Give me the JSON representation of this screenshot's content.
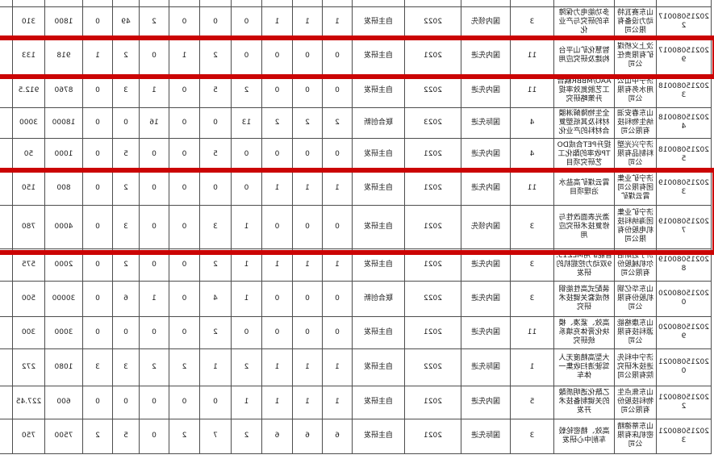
{
  "table": {
    "rows": [
      {
        "id": "202150800172",
        "company": "山东赛瓦特动力设备有限公司",
        "project": "多功能电力保障车的研究与产业化",
        "count": "3",
        "level": "国内领先",
        "year": "2022",
        "mode": "自主研发",
        "values": [
          "1",
          "1",
          "1",
          "0",
          "0",
          "0",
          "2",
          "49",
          "0",
          "1800",
          "310"
        ]
      },
      {
        "id": "202150800179",
        "company": "汶上义桥煤矿有限责任公司",
        "project": "智慧化矿山平台构建及研究应用",
        "count": "11",
        "level": "国内先进",
        "year": "2021",
        "mode": "自主研发",
        "values": [
          "0",
          "0",
          "0",
          "0",
          "2",
          "1",
          "0",
          "2",
          "1",
          "918",
          "133"
        ]
      },
      {
        "id": "202150800183",
        "company": "济宁中山公用水务有限公司",
        "project": "AAO/MBBR耦合工艺脱氮效率提升策略研究",
        "count": "11",
        "level": "国内先进",
        "year": "2022",
        "mode": "自主研发",
        "values": [
          "0",
          "0",
          "0",
          "2",
          "5",
          "0",
          "1",
          "3",
          "0",
          "8760",
          "912.5"
        ]
      },
      {
        "id": "202150800184",
        "company": "山东春安沺纳生物科技有限公司",
        "project": "全生物降解淋膜材料及其纸塑复合材料的产业化",
        "count": "4",
        "level": "国际先进",
        "year": "2023",
        "mode": "联合创新",
        "values": [
          "2",
          "2",
          "2",
          "13",
          "0",
          "0",
          "16",
          "0",
          "0",
          "18000",
          "3000"
        ]
      },
      {
        "id": "202150800185",
        "company": "济宁兴光塑料制品有限公司",
        "project": "提升PET合成DOTP收率的酯化工艺研究项目",
        "count": "4",
        "level": "国内先进",
        "year": "2021",
        "mode": "自主研发",
        "values": [
          "0",
          "0",
          "0",
          "0",
          "5",
          "0",
          "0",
          "5",
          "0",
          "1000",
          "50"
        ]
      },
      {
        "id": "202150800193",
        "company": "济宁矿业集团有限公司霄云煤矿",
        "project": "霄云煤矿高盐水治理项目",
        "count": "11",
        "level": "国内先进",
        "year": "2021",
        "mode": "自主研发",
        "values": [
          "1",
          "1",
          "1",
          "0",
          "0",
          "0",
          "0",
          "2",
          "0",
          "800",
          "150"
        ]
      },
      {
        "id": "202150800197",
        "company": "济宁矿业集团海纳科技机电股份有限公司",
        "project": "激光表面改性与修复技术研究应用",
        "count": "3",
        "level": "国内领先",
        "year": "2021",
        "mode": "自主研发",
        "values": [
          "0",
          "0",
          "0",
          "1",
          "3",
          "0",
          "0",
          "3",
          "0",
          "4000",
          "780"
        ]
      },
      {
        "id": "202150800198",
        "company": "济宁迈斯伯尔机械股份有限公司",
        "project": "智能矿用MEZ15.9双动力挖掘机的研发",
        "count": "3",
        "level": "国内先进",
        "year": "2021",
        "mode": "自主研发",
        "values": [
          "1",
          "1",
          "1",
          "1",
          "2",
          "0",
          "0",
          "2",
          "0",
          "2000",
          "575"
        ]
      },
      {
        "id": "202150800200",
        "company": "山东华亿钢机股份有限公司",
        "project": "装配式高性能钢桥成套关键技术研究",
        "count": "3",
        "level": "国内先进",
        "year": "2022",
        "mode": "联合创新",
        "values": [
          "0",
          "0",
          "0",
          "1",
          "4",
          "0",
          "1",
          "6",
          "0",
          "30000",
          "500"
        ]
      },
      {
        "id": "202150800209",
        "company": "山东康格能源科技有限公司",
        "project": "高效、紧凑、模块化膏体充填系统研究",
        "count": "11",
        "level": "国内先进",
        "year": "2021",
        "mode": "自主研发",
        "values": [
          "0",
          "0",
          "0",
          "0",
          "2",
          "0",
          "0",
          "0",
          "0",
          "3000",
          "300"
        ]
      },
      {
        "id": "202150800210",
        "company": "济宁中科先进技术研究院有限公司",
        "project": "大型高精度无人驾驶清扫收集一体车",
        "count": "1",
        "level": "国际先进",
        "year": "2022",
        "mode": "自主研发",
        "values": [
          "1",
          "1",
          "1",
          "2",
          "1",
          "2",
          "2",
          "3",
          "3",
          "1080",
          "272"
        ]
      },
      {
        "id": "202150800212",
        "company": "山东焦点生物科技股份有限公司",
        "project": "乙酰化透明质酸的关键制备技术开发",
        "count": "5",
        "level": "国内先进",
        "year": "2021",
        "mode": "自主研发",
        "values": [
          "1",
          "1",
          "1",
          "1",
          "0",
          "0",
          "0",
          "0",
          "0",
          "600",
          "227.45"
        ]
      },
      {
        "id": "202150800213",
        "company": "山东蒂德精密机床有限公司",
        "project": "高效、精密轮毂车削中心研发",
        "count": "3",
        "level": "国际先进",
        "year": "2021",
        "mode": "自主研发",
        "values": [
          "6",
          "6",
          "6",
          "2",
          "7",
          "2",
          "0",
          "5",
          "2",
          "7500",
          "750"
        ]
      }
    ]
  },
  "annotations": {
    "highlight_color": "#cb0404",
    "highlights": [
      {
        "row_ids": [
          "202150800179"
        ]
      },
      {
        "row_ids": [
          "202150800193",
          "202150800197"
        ]
      }
    ]
  }
}
